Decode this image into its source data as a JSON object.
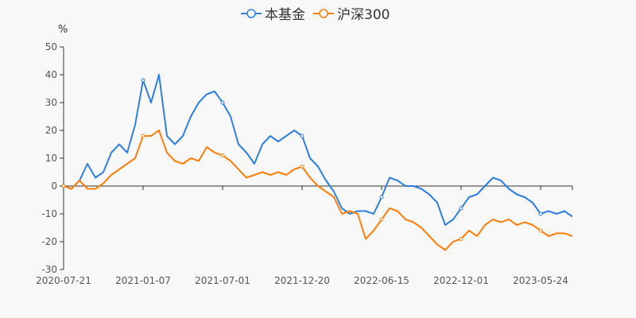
{
  "chart_data": {
    "type": "line",
    "title": "",
    "ylabel": "%",
    "xlabel": "",
    "ylim": [
      -30,
      50
    ],
    "yticks": [
      50,
      40,
      30,
      20,
      10,
      0,
      -10,
      -20,
      -30
    ],
    "xtick_labels": [
      "2020-07-21",
      "2021-01-07",
      "2021-07-01",
      "2021-12-20",
      "2022-06-15",
      "2022-12-01",
      "2023-05-24"
    ],
    "xtick_every": 10,
    "grid": false,
    "legend": "top-center",
    "series": [
      {
        "name": "本基金",
        "color": "#2f7ee0",
        "values": [
          0,
          -1,
          2,
          8,
          3,
          5,
          12,
          15,
          12,
          22,
          38,
          30,
          40,
          18,
          15,
          18,
          25,
          30,
          33,
          34,
          30,
          25,
          15,
          12,
          8,
          15,
          18,
          16,
          18,
          20,
          18,
          10,
          7,
          2,
          -2,
          -8,
          -10,
          -9,
          -9,
          -10,
          -4,
          3,
          2,
          0,
          0,
          -1,
          -3,
          -6,
          -14,
          -12,
          -8,
          -4,
          -3,
          0,
          3,
          2,
          -1,
          -3,
          -4,
          -6,
          -10,
          -9,
          -10,
          -9,
          -11
        ]
      },
      {
        "name": "沪深300",
        "color": "#ff7f0e",
        "values": [
          0,
          -1,
          2,
          -1,
          -1,
          1,
          4,
          6,
          8,
          10,
          18,
          18,
          20,
          12,
          9,
          8,
          10,
          9,
          14,
          12,
          11,
          9,
          6,
          3,
          4,
          5,
          4,
          5,
          4,
          6,
          7,
          3,
          0,
          -2,
          -4,
          -10,
          -9,
          -10,
          -19,
          -16,
          -12,
          -8,
          -9,
          -12,
          -13,
          -15,
          -18,
          -21,
          -23,
          -20,
          -19,
          -16,
          -18,
          -14,
          -12,
          -13,
          -12,
          -14,
          -13,
          -14,
          -16,
          -18,
          -17,
          -17,
          -18
        ]
      }
    ]
  }
}
